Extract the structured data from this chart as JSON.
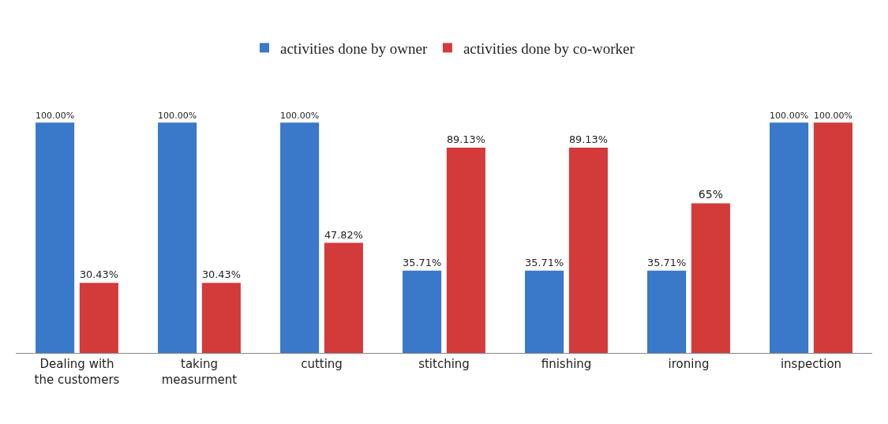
{
  "chart_data": {
    "type": "bar",
    "categories": [
      "Dealing with the customers",
      "taking measurment",
      "cutting",
      "stitching",
      "finishing",
      "ironing",
      "inspection"
    ],
    "series": [
      {
        "name": "activities done by owner",
        "color": "#3a78c9",
        "values": [
          100,
          100,
          100,
          35.71,
          35.71,
          35.71,
          100
        ],
        "value_labels": [
          "100.00%",
          "100.00%",
          "100.00%",
          "35.71%",
          "35.71%",
          "35.71%",
          "100.00%"
        ]
      },
      {
        "name": "activities done by co-worker",
        "color": "#d33b3b",
        "values": [
          30.43,
          30.43,
          47.82,
          89.13,
          89.13,
          65,
          100
        ],
        "value_labels": [
          "30.43%",
          "30.43%",
          "47.82%",
          "89.13%",
          "89.13%",
          "65%",
          "100.00%"
        ]
      }
    ],
    "legend": "top",
    "grid": false
  }
}
